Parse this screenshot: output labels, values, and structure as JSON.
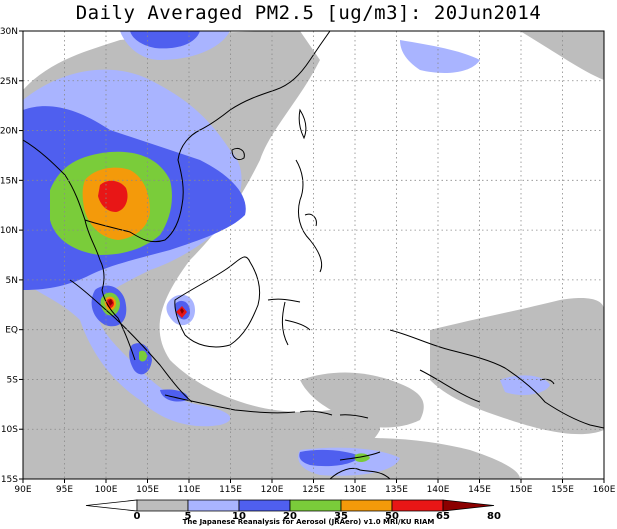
{
  "title": "Daily Averaged PM2.5 [ug/m3]: 20Jun2014",
  "credit": "The Japanese Reanalysis for Aerosol (JRAero) v1.0 MRI/KU RIAM",
  "lon_labels": [
    "90E",
    "95E",
    "100E",
    "105E",
    "110E",
    "115E",
    "120E",
    "125E",
    "130E",
    "135E",
    "140E",
    "145E",
    "150E",
    "155E",
    "160E"
  ],
  "lat_labels": [
    "30N",
    "25N",
    "20N",
    "15N",
    "10N",
    "5N",
    "EQ",
    "5S",
    "10S",
    "15S"
  ],
  "colorbar": {
    "levels": [
      "0",
      "5",
      "10",
      "20",
      "35",
      "50",
      "65",
      "80"
    ],
    "colors": [
      "#ffffff",
      "#bdbdbd",
      "#a9b4ff",
      "#4f5fef",
      "#7acc3a",
      "#f49a0a",
      "#e81616",
      "#8b0000"
    ]
  },
  "colors": {
    "c5": "#bdbdbd",
    "c10": "#a9b4ff",
    "c20": "#4f5fef",
    "c35": "#7acc3a",
    "c50": "#f49a0a",
    "c65": "#e81616",
    "c80": "#8b0000"
  }
}
